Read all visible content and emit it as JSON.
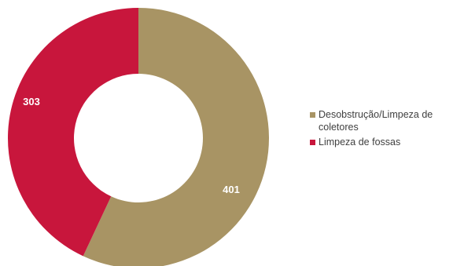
{
  "chart_data": {
    "type": "pie",
    "style": "donut",
    "categories": [
      "Desobstrução/Limpeza de coletores",
      "Limpeza de fossas"
    ],
    "values": [
      401,
      303
    ],
    "colors": [
      "#A89464",
      "#C8163C"
    ],
    "data_labels": [
      "401",
      "303"
    ],
    "legend": {
      "placement": "right",
      "items": [
        {
          "label": "Desobstrução/Limpeza de coletores",
          "color": "#A89464"
        },
        {
          "label": "Limpeza de fossas",
          "color": "#C8163C"
        }
      ]
    },
    "title": "",
    "label_color": "#ffffff"
  }
}
